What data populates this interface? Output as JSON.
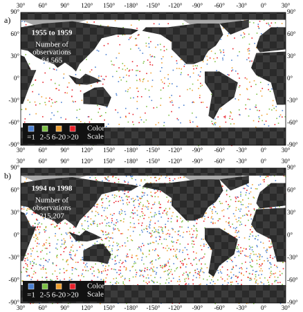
{
  "lon_ticks": [
    "30°",
    "60°",
    "90°",
    "120°",
    "150°",
    "-180°",
    "-150°",
    "-120°",
    "-90°",
    "-60°",
    "-30°",
    "0°",
    "30°"
  ],
  "lat_ticks": [
    "90°",
    "60°",
    "30°",
    "0°",
    "-30°",
    "-60°",
    "-90°"
  ],
  "panels": [
    {
      "label": "a)",
      "period": "1955 to 1959",
      "count_label": [
        "Number of",
        "observations"
      ],
      "count": "64,565"
    },
    {
      "label": "b)",
      "period": "1994 to 1998",
      "count_label": [
        "Number of",
        "observations"
      ],
      "count": "215,207"
    }
  ],
  "legend": {
    "items": [
      {
        "label": "=1",
        "color": "#4a7fd0"
      },
      {
        "label": "2-5",
        "color": "#7cc043"
      },
      {
        "label": "6-20",
        "color": "#f0a030"
      },
      {
        "label": ">20",
        "color": "#e8202a"
      }
    ],
    "title": [
      "Color",
      "Scale"
    ]
  }
}
